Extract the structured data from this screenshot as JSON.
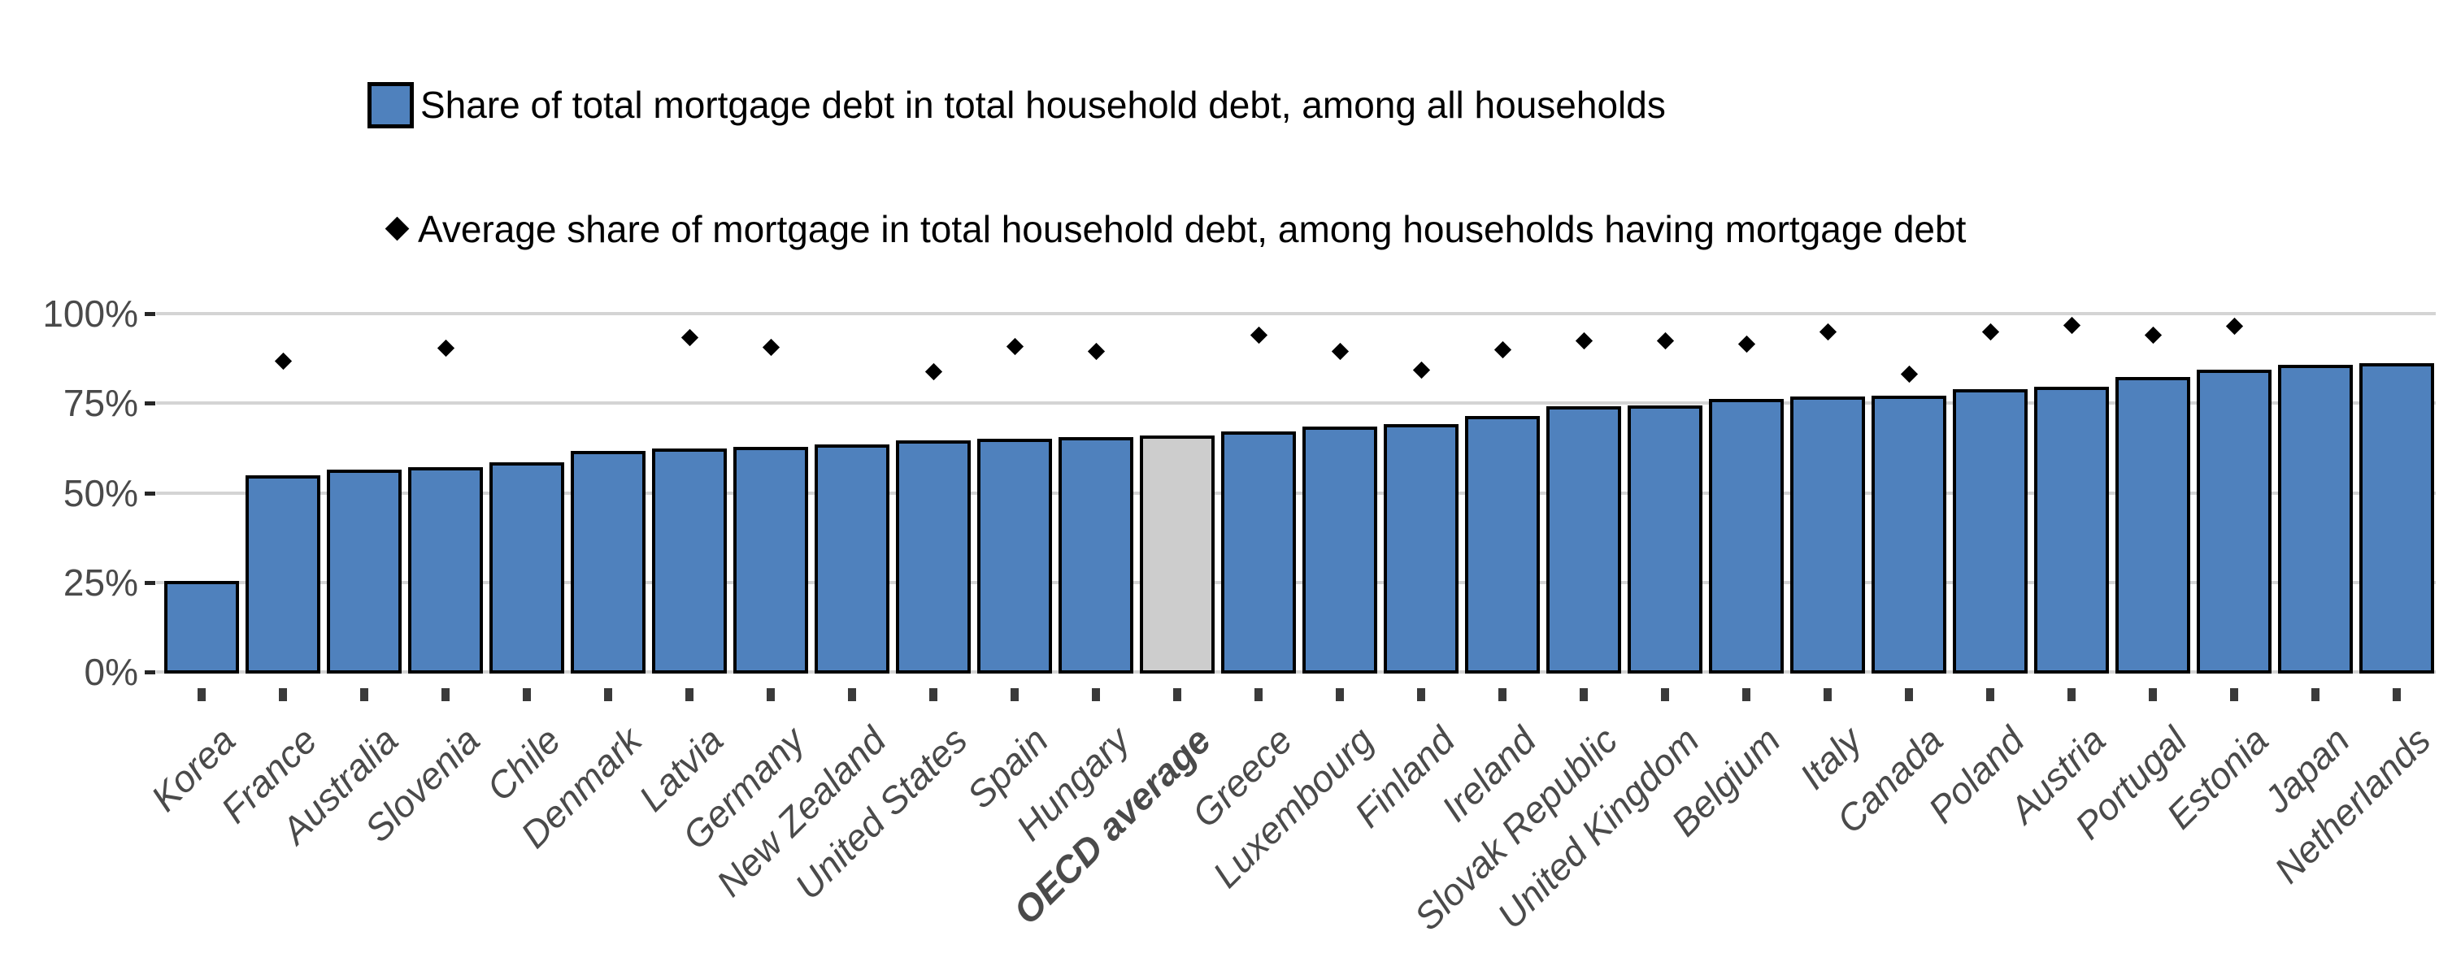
{
  "legend": {
    "bar_label": "Share of total mortgage debt in total household debt, among all households",
    "diamond_label": "Average share of mortgage in total household debt, among households having mortgage debt"
  },
  "y_axis": {
    "tick_labels": [
      "100%",
      "75%",
      "50%",
      "25%",
      "0%"
    ],
    "min": 0,
    "max": 100
  },
  "chart_data": {
    "type": "bar",
    "title": "",
    "xlabel": "",
    "ylabel": "",
    "ylim": [
      0,
      100
    ],
    "grid": "horizontal",
    "legend_position": "top-left",
    "highlight_category": "OECD average",
    "categories": [
      "Korea",
      "France",
      "Australia",
      "Slovenia",
      "Chile",
      "Denmark",
      "Latvia",
      "Germany",
      "New Zealand",
      "United States",
      "Spain",
      "Hungary",
      "OECD average",
      "Greece",
      "Luxembourg",
      "Finland",
      "Ireland",
      "Slovak Republic",
      "United Kingdom",
      "Belgium",
      "Italy",
      "Canada",
      "Poland",
      "Austria",
      "Portugal",
      "Estonia",
      "Japan",
      "Netherlands"
    ],
    "series": [
      {
        "name": "Share of total mortgage debt in total household debt, among all households",
        "type": "bar",
        "values": [
          25.4,
          54.8,
          56.4,
          57.2,
          58.5,
          61.6,
          62.4,
          62.9,
          63.5,
          64.6,
          65.0,
          65.6,
          66.0,
          67.1,
          68.4,
          69.1,
          71.4,
          74.1,
          74.3,
          76.2,
          76.8,
          77.1,
          79.0,
          79.6,
          82.3,
          84.4,
          85.8,
          86.2
        ]
      },
      {
        "name": "Average share of mortgage in total household debt, among households having mortgage debt",
        "type": "scatter",
        "marker": "diamond",
        "values": [
          null,
          86.8,
          null,
          90.3,
          null,
          null,
          93.4,
          90.6,
          null,
          83.9,
          90.9,
          89.5,
          null,
          94.0,
          89.4,
          84.2,
          90.0,
          92.4,
          92.5,
          91.5,
          95.0,
          83.2,
          94.8,
          96.8,
          94.0,
          96.5,
          null,
          null
        ]
      }
    ],
    "colors": {
      "bar_fill": "#4F81BD",
      "highlight_bar_fill": "#CDCDCD",
      "bar_border": "#000000",
      "marker": "#000000",
      "gridline": "#D4D4D4",
      "axis_text": "#4A4A4A",
      "legend_text": "#000000"
    }
  }
}
